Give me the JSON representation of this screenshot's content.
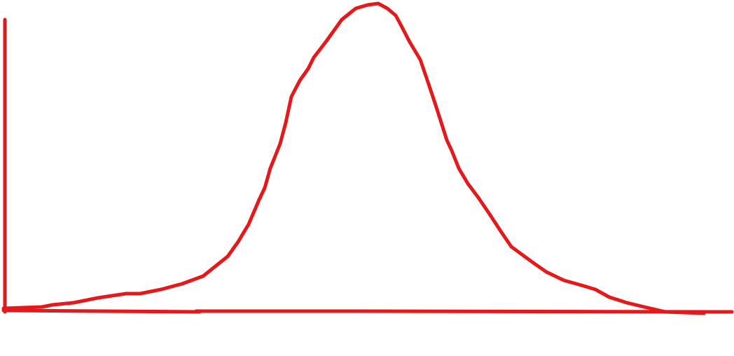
{
  "sketch": {
    "kind": "bell-curve",
    "stroke_color": "#e3191c",
    "background": "#ffffff",
    "has_axes": true,
    "labels": []
  }
}
